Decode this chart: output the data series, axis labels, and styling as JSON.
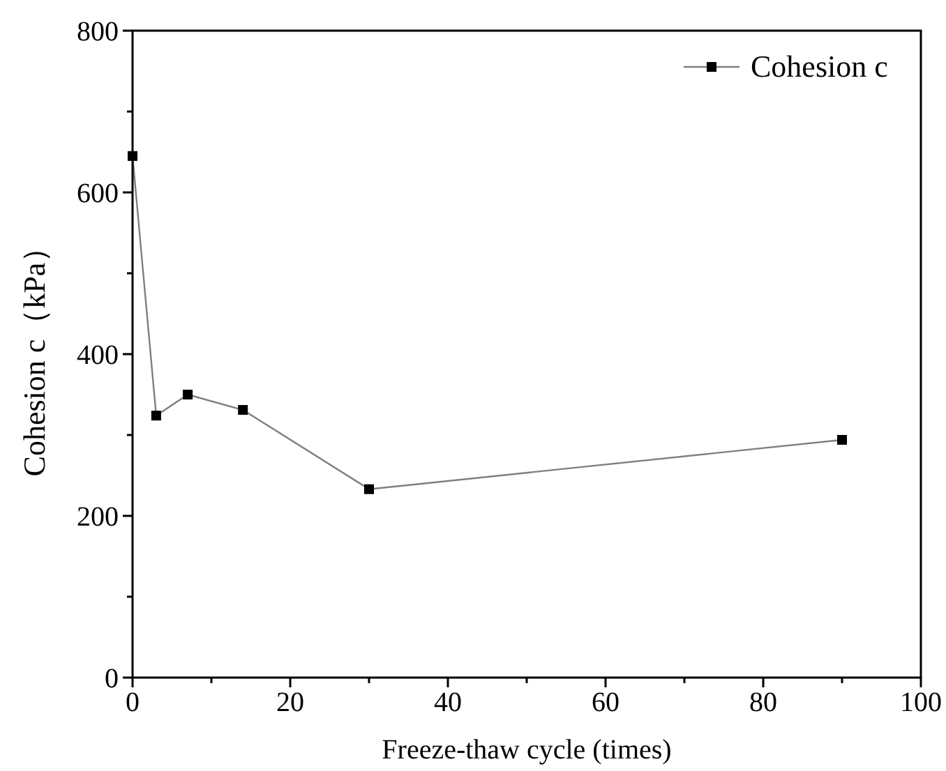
{
  "chart_data": {
    "type": "line",
    "xlabel": "Freeze-thaw cycle (times)",
    "ylabel": "Cohesion c（kPa）",
    "x": [
      0,
      3,
      7,
      14,
      30,
      90
    ],
    "series": [
      {
        "name": "Cohesion c",
        "color": "#000000",
        "values": [
          645,
          324,
          350,
          331,
          233,
          294
        ]
      }
    ],
    "xlim": [
      0,
      100
    ],
    "ylim": [
      0,
      800
    ],
    "xticks": [
      0,
      {
        "value": 10,
        "label": null
      },
      20,
      {
        "value": 30,
        "label": null
      },
      40,
      {
        "value": 50,
        "label": null
      },
      60,
      {
        "value": 70,
        "label": null
      },
      80,
      {
        "value": 90,
        "label": null
      },
      100
    ],
    "yticks": [
      0,
      {
        "value": 100,
        "label": null
      },
      200,
      {
        "value": 300,
        "label": null
      },
      400,
      {
        "value": 500,
        "label": null
      },
      600,
      {
        "value": 700,
        "label": null
      },
      800
    ],
    "marker": "square",
    "line_style": "solid",
    "legend": "top right",
    "grid": false
  }
}
